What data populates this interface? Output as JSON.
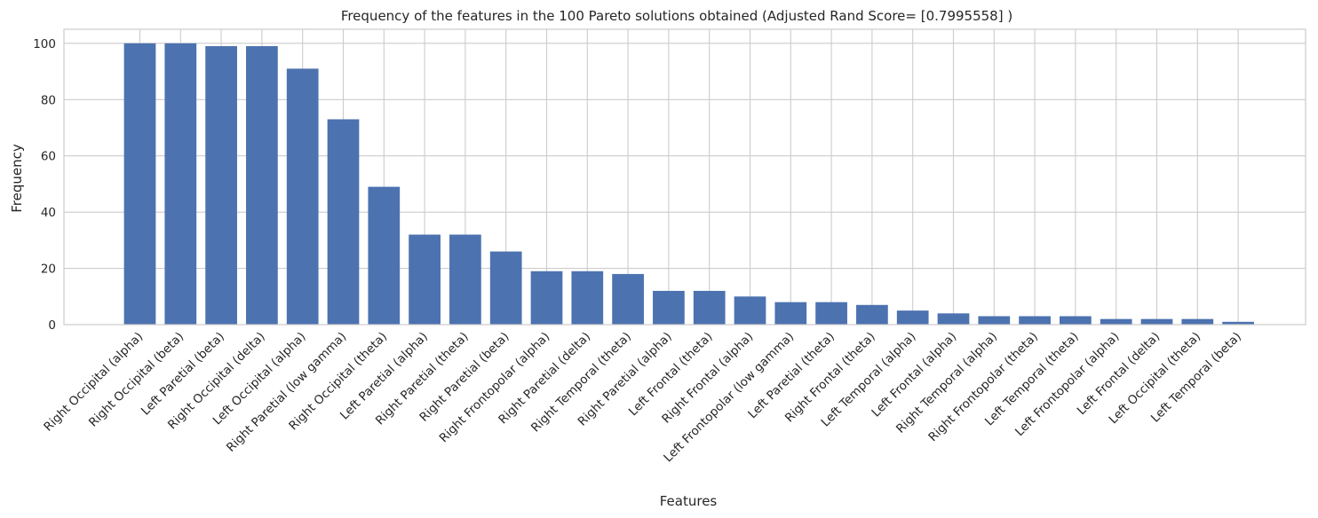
{
  "chart_data": {
    "type": "bar",
    "title": "Frequency of the features in the 100 Pareto solutions obtained (Adjusted Rand Score= [0.7995558] )",
    "xlabel": "Features",
    "ylabel": "Frequency",
    "ylim": [
      0,
      105
    ],
    "yticks": [
      0,
      20,
      40,
      60,
      80,
      100
    ],
    "grid": true,
    "bar_color": "#4c72b0",
    "categories": [
      "Right Occipital (alpha)",
      "Right Occipital (beta)",
      "Left Paretial (beta)",
      "Right Occipital (delta)",
      "Left Occipital (alpha)",
      "Right Paretial (low gamma)",
      "Right Occipital (theta)",
      "Left Paretial (alpha)",
      "Right Paretial (theta)",
      "Right Paretial (beta)",
      "Right Frontopolar (alpha)",
      "Right Paretial (delta)",
      "Right Temporal (theta)",
      "Right Paretial (alpha)",
      "Left Frontal (theta)",
      "Right Frontal (alpha)",
      "Left Frontopolar (low gamma)",
      "Left Paretial (theta)",
      "Right Frontal (theta)",
      "Left Temporal (alpha)",
      "Left Frontal (alpha)",
      "Right Temporal (alpha)",
      "Right Frontopolar (theta)",
      "Left Temporal (theta)",
      "Left Frontopolar (alpha)",
      "Left Frontal (delta)",
      "Left Occipital (theta)",
      "Left Temporal (beta)"
    ],
    "values": [
      100,
      100,
      99,
      99,
      91,
      73,
      49,
      32,
      32,
      26,
      19,
      19,
      18,
      12,
      12,
      10,
      8,
      8,
      7,
      5,
      4,
      3,
      3,
      3,
      2,
      2,
      2,
      1
    ]
  }
}
